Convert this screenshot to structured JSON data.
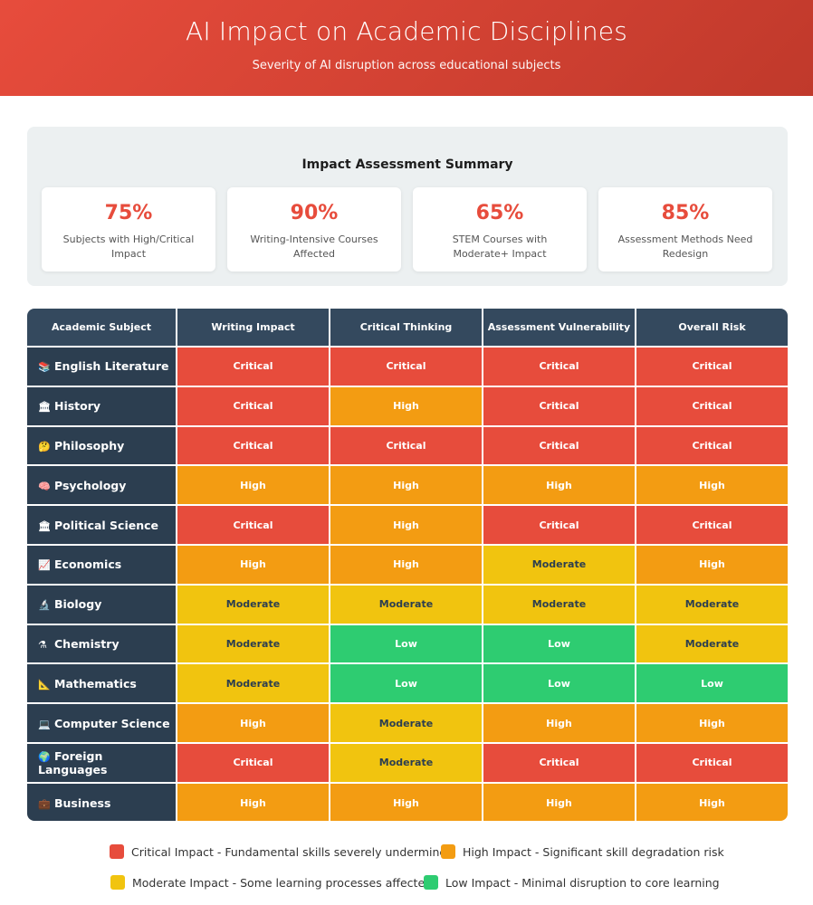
{
  "header": {
    "title": "AI Impact on Academic Disciplines",
    "subtitle": "Severity of AI disruption across educational subjects"
  },
  "summary": {
    "title": "Impact Assessment Summary",
    "stats": [
      {
        "value": "75%",
        "label": "Subjects with High/Critical Impact"
      },
      {
        "value": "90%",
        "label": "Writing-Intensive Courses Affected"
      },
      {
        "value": "65%",
        "label": "STEM Courses with Moderate+ Impact"
      },
      {
        "value": "85%",
        "label": "Assessment Methods Need Redesign"
      }
    ]
  },
  "matrix": {
    "headers": [
      "Academic Subject",
      "Writing Impact",
      "Critical Thinking",
      "Assessment Vulnerability",
      "Overall Risk"
    ],
    "rows": [
      {
        "icon": "📚",
        "subject": "English Literature",
        "writing": "Critical",
        "thinking": "Critical",
        "assessment": "Critical",
        "overall": "Critical"
      },
      {
        "icon": "🏛",
        "subject": "History",
        "writing": "Critical",
        "thinking": "High",
        "assessment": "Critical",
        "overall": "Critical"
      },
      {
        "icon": "🤔",
        "subject": "Philosophy",
        "writing": "Critical",
        "thinking": "Critical",
        "assessment": "Critical",
        "overall": "Critical"
      },
      {
        "icon": "🧠",
        "subject": "Psychology",
        "writing": "High",
        "thinking": "High",
        "assessment": "High",
        "overall": "High"
      },
      {
        "icon": "🏛",
        "subject": "Political Science",
        "writing": "Critical",
        "thinking": "High",
        "assessment": "Critical",
        "overall": "Critical"
      },
      {
        "icon": "📈",
        "subject": "Economics",
        "writing": "High",
        "thinking": "High",
        "assessment": "Moderate",
        "overall": "High"
      },
      {
        "icon": "🔬",
        "subject": "Biology",
        "writing": "Moderate",
        "thinking": "Moderate",
        "assessment": "Moderate",
        "overall": "Moderate"
      },
      {
        "icon": "⚗",
        "subject": "Chemistry",
        "writing": "Moderate",
        "thinking": "Low",
        "assessment": "Low",
        "overall": "Moderate"
      },
      {
        "icon": "📐",
        "subject": "Mathematics",
        "writing": "Moderate",
        "thinking": "Low",
        "assessment": "Low",
        "overall": "Low"
      },
      {
        "icon": "💻",
        "subject": "Computer Science",
        "writing": "High",
        "thinking": "Moderate",
        "assessment": "High",
        "overall": "High"
      },
      {
        "icon": "🌍",
        "subject": "Foreign Languages",
        "writing": "Critical",
        "thinking": "Moderate",
        "assessment": "Critical",
        "overall": "Critical"
      },
      {
        "icon": "💼",
        "subject": "Business",
        "writing": "High",
        "thinking": "High",
        "assessment": "High",
        "overall": "High"
      }
    ]
  },
  "legend": [
    {
      "color": "#e74c3c",
      "label": "Critical Impact - Fundamental skills severely undermined"
    },
    {
      "color": "#f39c12",
      "label": "High Impact - Significant skill degradation risk"
    },
    {
      "color": "#f1c40f",
      "label": "Moderate Impact - Some learning processes affected"
    },
    {
      "color": "#2ecc71",
      "label": "Low Impact - Minimal disruption to core learning"
    }
  ],
  "colors": {
    "critical": "#e74c3c",
    "high": "#f39c12",
    "moderate": "#f1c40f",
    "low": "#2ecc71",
    "subject_column": "#2c3e50",
    "header_row": "#34495e"
  }
}
